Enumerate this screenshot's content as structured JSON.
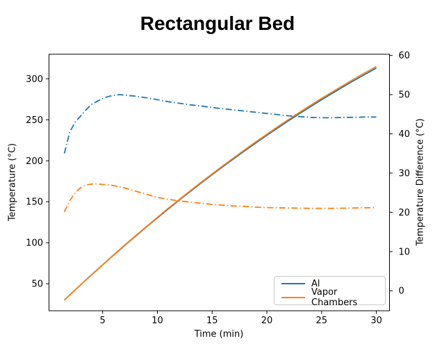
{
  "figure": {
    "title": "Rectangular Bed"
  },
  "chart_data": {
    "type": "line",
    "title": "Rectangular Bed",
    "xlabel": "Time (min)",
    "ylabel_left": "Temperature (°C)",
    "ylabel_right": "Temperature Difference (°C)",
    "xlim": [
      0.1,
      31.2
    ],
    "ylim_left": [
      17,
      330
    ],
    "ylim_right": [
      -5.1,
      60.3
    ],
    "xticks": [
      5,
      10,
      15,
      20,
      25,
      30
    ],
    "yticks_left": [
      50,
      100,
      150,
      200,
      250,
      300
    ],
    "yticks_right": [
      0,
      10,
      20,
      30,
      40,
      50,
      60
    ],
    "grid": false,
    "legend_position": "lower right",
    "legend": [
      {
        "label": "Al",
        "color": "#1f77b4"
      },
      {
        "label": "Vapor Chambers",
        "color": "#ff7f0e"
      }
    ],
    "colors": {
      "al": "#1f77b4",
      "vapor_chambers": "#ff7f0e"
    },
    "series": [
      {
        "name": "al-temperature",
        "axis": "left",
        "color": "#1f77b4",
        "style": "solid",
        "x": [
          1.5,
          2,
          3,
          4,
          5,
          6,
          7,
          8,
          9,
          10,
          11,
          12,
          13,
          14,
          15,
          16,
          17,
          18,
          19,
          20,
          21,
          22,
          23,
          24,
          25,
          26,
          27,
          28,
          29,
          30
        ],
        "y": [
          30,
          36.3,
          48.7,
          60.9,
          73.0,
          84.8,
          96.5,
          107.9,
          119.2,
          130.3,
          141.3,
          152.0,
          162.5,
          172.9,
          183.1,
          193.0,
          202.8,
          212.4,
          221.8,
          231.1,
          240.1,
          249.0,
          257.7,
          266.1,
          274.4,
          282.5,
          290.5,
          298.2,
          305.7,
          313.1
        ]
      },
      {
        "name": "vapor-chambers-temperature",
        "axis": "left",
        "color": "#ff7f0e",
        "style": "solid",
        "x": [
          1.5,
          2,
          3,
          4,
          5,
          6,
          7,
          8,
          9,
          10,
          11,
          12,
          13,
          14,
          15,
          16,
          17,
          18,
          19,
          20,
          21,
          22,
          23,
          24,
          25,
          26,
          27,
          28,
          29,
          30
        ],
        "y": [
          30,
          36.3,
          48.8,
          61.1,
          73.2,
          85.1,
          96.9,
          108.4,
          119.7,
          130.9,
          142.0,
          152.7,
          163.3,
          173.8,
          184.0,
          194.0,
          203.9,
          213.6,
          223.1,
          232.4,
          241.5,
          250.4,
          259.2,
          267.7,
          276.1,
          284.2,
          292.2,
          300.0,
          307.6,
          315.1
        ]
      },
      {
        "name": "al-temperature-difference",
        "axis": "right",
        "color": "#1f77b4",
        "style": "dashdot",
        "x": [
          1.5,
          2,
          2.5,
          3,
          3.5,
          4,
          4.5,
          5,
          5.5,
          6,
          6.5,
          7,
          8,
          9,
          10,
          11,
          12,
          13,
          14,
          15,
          16,
          17,
          18,
          19,
          20,
          21,
          22,
          23,
          24,
          25,
          26,
          27,
          28,
          29,
          30
        ],
        "y": [
          35,
          40.5,
          43,
          44.6,
          46.2,
          47.5,
          48.3,
          49,
          49.5,
          49.8,
          50,
          49.9,
          49.6,
          49.2,
          48.7,
          48.2,
          47.8,
          47.4,
          47.1,
          46.7,
          46.4,
          46.1,
          45.8,
          45.5,
          45.2,
          44.9,
          44.6,
          44.4,
          44.2,
          44.1,
          44.1,
          44.2,
          44.2,
          44.3,
          44.3
        ]
      },
      {
        "name": "vapor-chambers-temperature-difference",
        "axis": "right",
        "color": "#ff7f0e",
        "style": "dashdot",
        "x": [
          1.5,
          2,
          2.5,
          3,
          3.5,
          4,
          4.5,
          5,
          5.5,
          6,
          6.5,
          7,
          8,
          9,
          10,
          11,
          12,
          13,
          14,
          15,
          16,
          17,
          18,
          19,
          20,
          21,
          22,
          23,
          24,
          25,
          26,
          27,
          28,
          29,
          30
        ],
        "y": [
          20.1,
          23,
          25,
          26.3,
          27,
          27.2,
          27.25,
          27.1,
          27,
          26.8,
          26.5,
          26.2,
          25.4,
          24.6,
          23.8,
          23.3,
          22.9,
          22.6,
          22.3,
          22.0,
          21.8,
          21.6,
          21.5,
          21.3,
          21.2,
          21.15,
          21.1,
          21.05,
          21.0,
          21.0,
          21.0,
          21.05,
          21.1,
          21.15,
          21.2
        ]
      }
    ]
  }
}
